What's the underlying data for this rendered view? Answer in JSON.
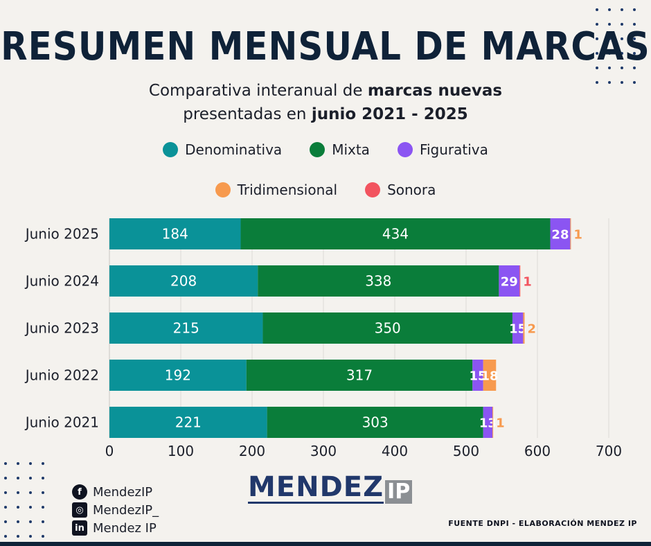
{
  "title": "RESUMEN MENSUAL DE MARCAS",
  "subtitle": {
    "line1_prefix": "Comparativa interanual de ",
    "line1_bold": "marcas nuevas",
    "line2_prefix": "presentadas en ",
    "line2_bold": "junio 2021 - 2025"
  },
  "colors": {
    "Denominativa": "#0a9298",
    "Mixta": "#0a7d3a",
    "Figurativa": "#8b55f2",
    "Tridimensional": "#f79a4e",
    "Sonora": "#f2545f"
  },
  "chart_data": {
    "type": "bar",
    "orientation": "horizontal",
    "stacked": true,
    "categories": [
      "Junio 2025",
      "Junio 2024",
      "Junio 2023",
      "Junio 2022",
      "Junio 2021"
    ],
    "series": [
      {
        "name": "Denominativa",
        "values": [
          184,
          208,
          215,
          192,
          221
        ]
      },
      {
        "name": "Mixta",
        "values": [
          434,
          338,
          350,
          317,
          303
        ]
      },
      {
        "name": "Figurativa",
        "values": [
          28,
          29,
          15,
          15,
          13
        ]
      },
      {
        "name": "Tridimensional",
        "values": [
          1,
          0,
          2,
          18,
          1
        ]
      },
      {
        "name": "Sonora",
        "values": [
          0,
          1,
          0,
          0,
          0
        ]
      }
    ],
    "xlim": [
      0,
      700
    ],
    "xticks": [
      0,
      100,
      200,
      300,
      400,
      500,
      600,
      700
    ],
    "grid": "vertical",
    "legend": "top"
  },
  "social": {
    "facebook": "MendezIP",
    "instagram": "MendezIP_",
    "linkedin": "Mendez IP"
  },
  "logo": {
    "main": "MENDEZ",
    "ip": "IP"
  },
  "source": "FUENTE DNPI - ELABORACIÓN MENDEZ IP"
}
